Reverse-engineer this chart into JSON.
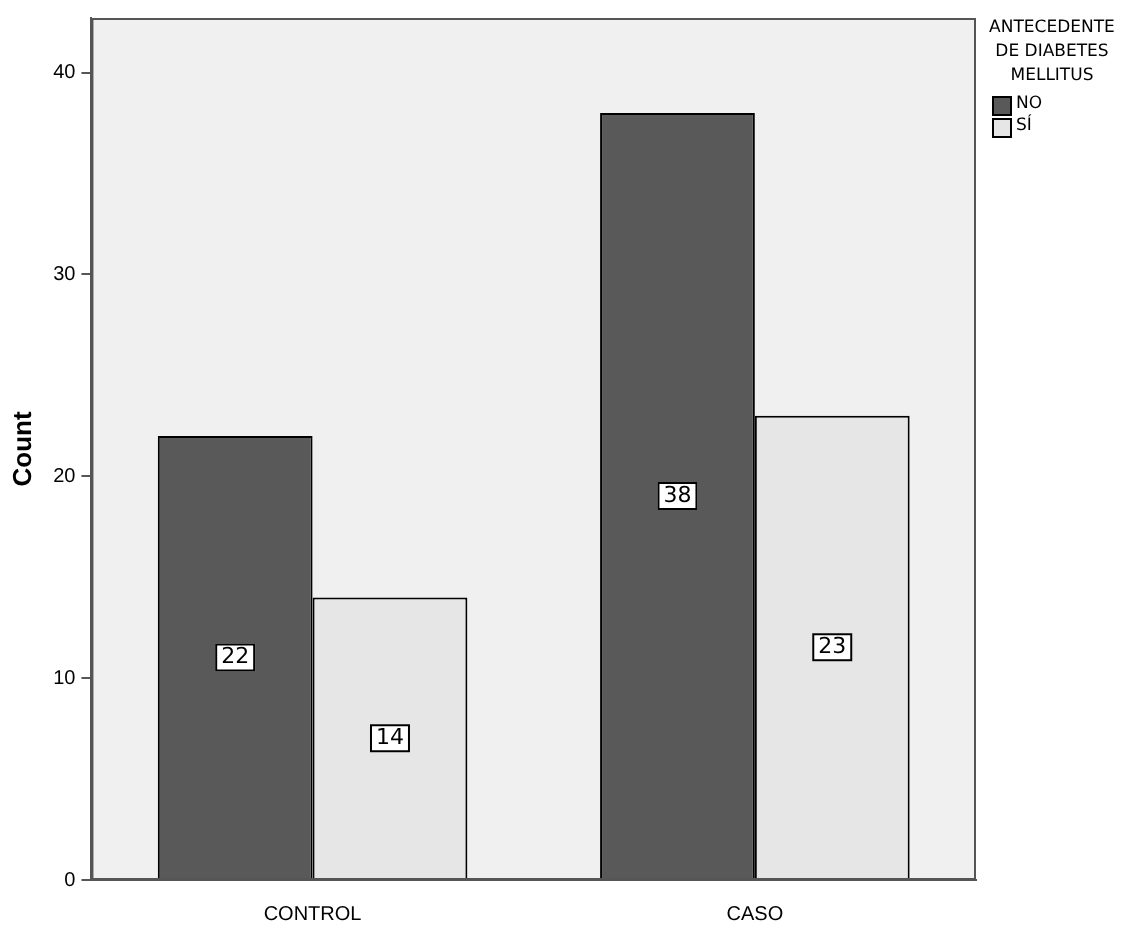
{
  "chart_data": {
    "type": "bar",
    "ylabel": "Count",
    "legend_title": "ANTECEDENTE DE DIABETES MELLITUS",
    "categories": [
      "CONTROL",
      "CASO"
    ],
    "series": [
      {
        "name": "NO",
        "color": "#595959",
        "values": [
          22,
          38
        ]
      },
      {
        "name": "SÍ",
        "color": "#e6e6e6",
        "values": [
          14,
          23
        ]
      }
    ],
    "ylim": [
      0,
      42.7
    ],
    "yticks": [
      0,
      10,
      20,
      30,
      40
    ],
    "grid": false,
    "legend": "right",
    "data_labels": true
  }
}
